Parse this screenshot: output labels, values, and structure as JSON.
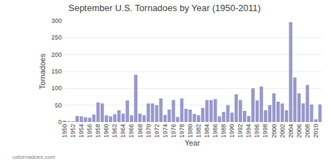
{
  "chart_data": {
    "type": "bar",
    "title": "September U.S. Tornadoes by Year (1950-2011)",
    "x_label": "Year",
    "y_label": "Tornadoes",
    "annotations": [
      "ustornadoes.com"
    ],
    "categories": [
      "1950",
      null,
      "1952",
      null,
      "1954",
      null,
      "1956",
      null,
      "1958",
      null,
      "1960",
      null,
      "1962",
      null,
      "1964",
      null,
      "1966",
      null,
      "1968",
      null,
      "1970",
      null,
      "1972",
      null,
      "1974",
      null,
      "1976",
      null,
      "1978",
      null,
      "1980",
      null,
      "1982",
      null,
      "1984",
      null,
      "1986",
      null,
      "1988",
      null,
      "1990",
      null,
      "1992",
      null,
      "1994",
      null,
      "1996",
      null,
      "1998",
      null,
      "2000",
      null,
      "2002",
      null,
      "2004",
      null,
      "2006",
      null,
      "2008",
      null,
      "2010",
      null
    ],
    "values": [
      3,
      2,
      1,
      18,
      17,
      14,
      13,
      22,
      58,
      55,
      20,
      17,
      23,
      35,
      25,
      64,
      20,
      140,
      25,
      20,
      55,
      55,
      50,
      70,
      21,
      37,
      65,
      15,
      70,
      39,
      37,
      24,
      20,
      42,
      65,
      65,
      68,
      17,
      30,
      50,
      28,
      82,
      65,
      33,
      18,
      100,
      64,
      105,
      35,
      50,
      85,
      60,
      55,
      35,
      296,
      132,
      85,
      55,
      110,
      52,
      8,
      52
    ],
    "color": "#9999cc",
    "ylim": [
      0,
      300
    ],
    "yticks": [
      0,
      50,
      100,
      150,
      200,
      250,
      300
    ],
    "grid": true
  }
}
